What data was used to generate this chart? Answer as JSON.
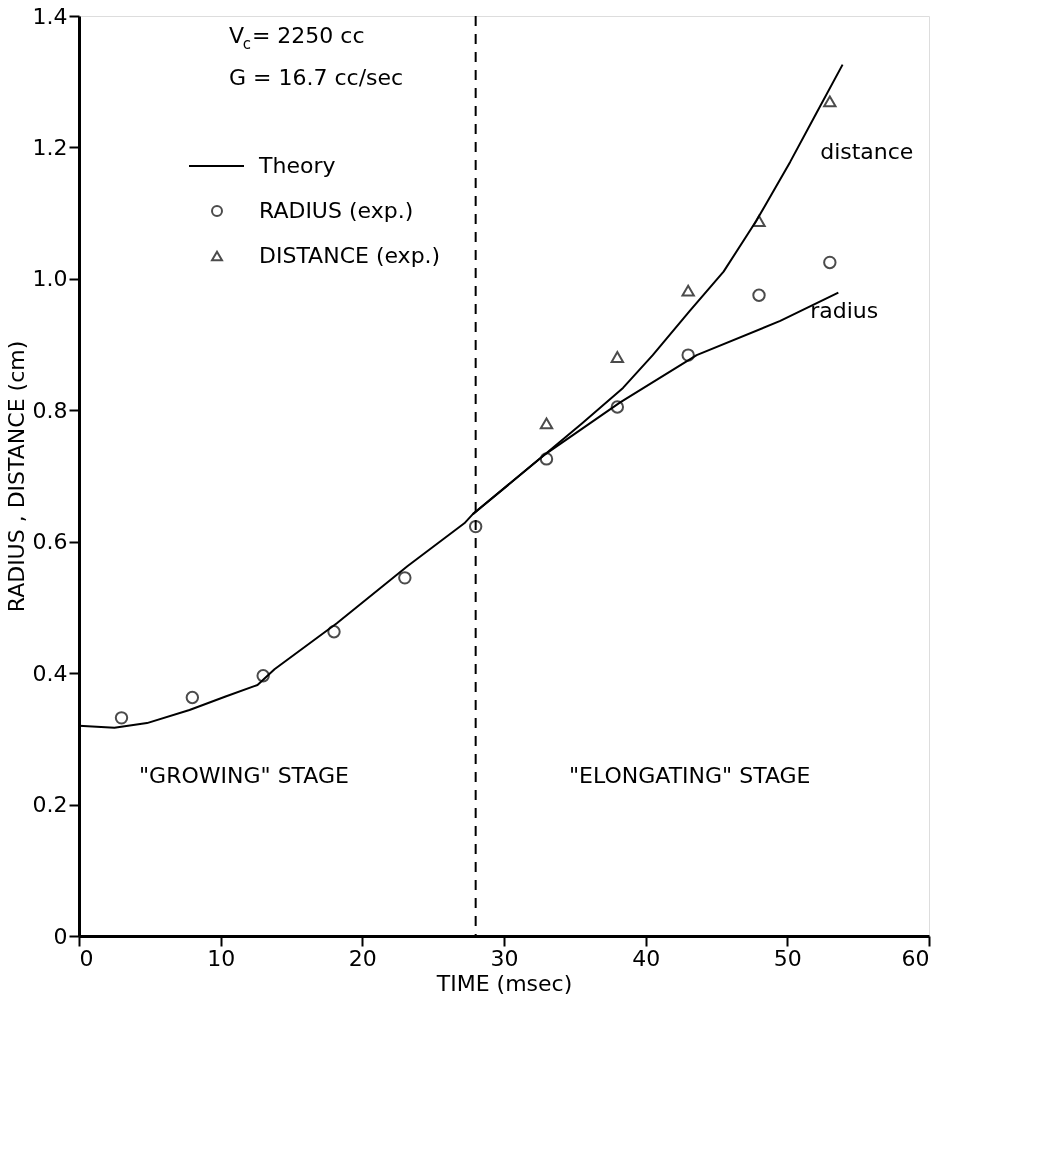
{
  "chart_data": {
    "type": "scatter",
    "xlabel": "TIME (msec)",
    "ylabel": "RADIUS , DISTANCE (cm)",
    "xlim": [
      0,
      60
    ],
    "ylim": [
      0,
      1.4
    ],
    "xticks": [
      0,
      10,
      20,
      30,
      40,
      50,
      60
    ],
    "yticks": [
      0,
      0.2,
      0.4,
      0.6,
      0.8,
      {
        "value": 1,
        "label": "1.0"
      },
      1.2,
      1.4
    ],
    "grid": false,
    "legend": "top left",
    "series": [
      {
        "name": "Theory",
        "type": "line",
        "color": "#000000",
        "line_style": "solid",
        "marker": "none",
        "x": [
          0,
          2.5,
          4.8,
          7.8,
          10.3,
          12.6,
          13.8,
          18.2,
          23.2,
          27.2,
          27.8,
          32.9,
          38.2,
          43.6,
          49.5,
          53.6
        ],
        "values": [
          0.32,
          0.317,
          0.324,
          0.344,
          0.364,
          0.382,
          0.406,
          0.476,
          0.563,
          0.628,
          0.642,
          0.733,
          0.812,
          0.884,
          0.936,
          0.979
        ]
      },
      {
        "type": "line",
        "color": "#000000",
        "line_style": "solid",
        "marker": "none",
        "x": [
          27.8,
          32.9,
          35.5,
          38.4,
          40.5,
          43.1,
          45.5,
          47.8,
          50.2,
          52,
          53.9
        ],
        "values": [
          0.642,
          0.733,
          0.78,
          0.834,
          0.884,
          0.951,
          1.011,
          1.088,
          1.178,
          1.25,
          1.326
        ]
      },
      {
        "name": "RADIUS (exp.)",
        "color": "#000000",
        "marker": "circle",
        "x": [
          3,
          8,
          13,
          18,
          23,
          28,
          33,
          38,
          43,
          48,
          53
        ],
        "values": [
          0.332,
          0.363,
          0.396,
          0.463,
          0.545,
          0.623,
          0.726,
          0.805,
          0.884,
          0.975,
          1.025
        ]
      },
      {
        "name": "DISTANCE (exp.)",
        "color": "#000000",
        "marker": "triangle",
        "x": [
          33,
          38,
          43,
          48,
          53
        ],
        "values": [
          0.78,
          0.881,
          0.982,
          1.088,
          1.27
        ]
      }
    ],
    "ref_lines": [
      {
        "axis": "x",
        "value": 28,
        "line_style": "dashed",
        "color": "#000000"
      }
    ],
    "annotations": [
      "V$_{c}$= 2250 cc",
      "G = 16.7 cc/sec",
      "\"GROWING\" STAGE",
      "\"ELONGATING\" STAGE",
      {
        "text": "distance",
        "x": 50.2,
        "y": 1.178
      },
      {
        "text": "radius",
        "x": 49.5,
        "y": 0.936
      }
    ]
  }
}
